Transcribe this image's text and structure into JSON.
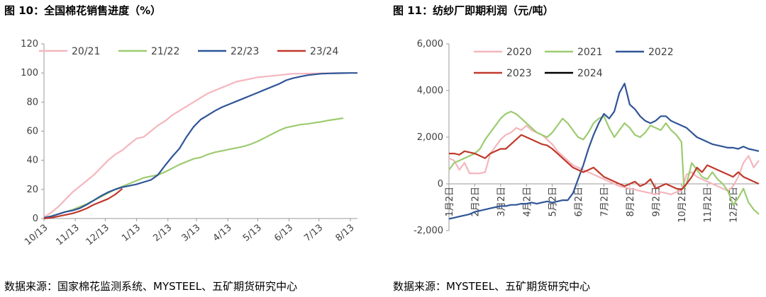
{
  "charts": [
    {
      "title": "图 10：全国棉花销售进度（%）",
      "source": "数据来源：国家棉花监测系统、MYSTEEL、五矿期货研究中心"
    },
    {
      "title": "图 11：纺纱厂即期利润（元/吨）",
      "source": "数据来源：MYSTEEL、五矿期货研究中心"
    }
  ],
  "chart_data": [
    {
      "type": "line",
      "title": "图 10：全国棉花销售进度（%）",
      "xlabel": "",
      "ylabel": "",
      "x_range": [
        0,
        44
      ],
      "x_ticks": [
        {
          "x": 0,
          "label": "10/13"
        },
        {
          "x": 4.4,
          "label": "11/13"
        },
        {
          "x": 8.6,
          "label": "12/13"
        },
        {
          "x": 13,
          "label": "1/13"
        },
        {
          "x": 17.4,
          "label": "2/13"
        },
        {
          "x": 21.4,
          "label": "3/13"
        },
        {
          "x": 25.8,
          "label": "4/13"
        },
        {
          "x": 30,
          "label": "5/13"
        },
        {
          "x": 34.4,
          "label": "6/13"
        },
        {
          "x": 38.6,
          "label": "7/13"
        },
        {
          "x": 43,
          "label": "8/13"
        }
      ],
      "ylim": [
        0,
        120
      ],
      "y_ticks": [
        0,
        20,
        40,
        60,
        80,
        100,
        120
      ],
      "grid": false,
      "legend": "top",
      "series": [
        {
          "name": "20/21",
          "color": "#f4b6bd",
          "x": [
            0,
            1,
            2,
            3,
            4,
            5,
            6,
            7,
            8,
            9,
            10,
            11,
            12,
            13,
            14,
            15,
            16,
            17,
            18,
            19,
            20,
            21,
            22,
            23,
            24,
            25,
            26,
            27,
            28,
            29,
            30,
            31,
            32,
            33,
            34,
            35,
            36,
            37,
            38,
            39,
            40,
            41,
            42
          ],
          "y": [
            1,
            4,
            8,
            13,
            18,
            22,
            26,
            30,
            35,
            40,
            44,
            47,
            51,
            55,
            56,
            60,
            64,
            67,
            71,
            74,
            77,
            80,
            83,
            86,
            88,
            90,
            92,
            94,
            95,
            96,
            97,
            97.5,
            98,
            98.5,
            99,
            99.5,
            99.5,
            99.6,
            99.7,
            99.8,
            99.8,
            99.9,
            100
          ]
        },
        {
          "name": "21/22",
          "color": "#9dcb70",
          "x": [
            0,
            1,
            2,
            3,
            4,
            5,
            6,
            7,
            8,
            9,
            10,
            11,
            12,
            13,
            14,
            15,
            16,
            17,
            18,
            19,
            20,
            21,
            22,
            23,
            24,
            25,
            26,
            27,
            28,
            29,
            30,
            31,
            32,
            33,
            34,
            35,
            36,
            37,
            38,
            39,
            40,
            41,
            42
          ],
          "y": [
            0.5,
            1.5,
            3,
            4.5,
            6,
            8,
            10,
            12.5,
            15,
            17.5,
            20,
            22,
            24,
            26,
            28,
            29,
            30,
            32,
            34.5,
            37,
            39,
            41,
            42,
            44,
            45.5,
            46.5,
            47.5,
            48.5,
            49.5,
            51,
            53,
            55.5,
            58,
            60.5,
            62.5,
            63.5,
            64.5,
            65,
            65.8,
            66.5,
            67.5,
            68.2,
            69
          ]
        },
        {
          "name": "22/23",
          "color": "#2f5597",
          "x": [
            0,
            1,
            2,
            3,
            4,
            5,
            6,
            7,
            8,
            9,
            10,
            11,
            12,
            13,
            14,
            15,
            16,
            17,
            18,
            19,
            20,
            21,
            22,
            23,
            24,
            25,
            26,
            27,
            28,
            29,
            30,
            31,
            32,
            33,
            34,
            35,
            36,
            37,
            38,
            39,
            40,
            41,
            42,
            43,
            44
          ],
          "y": [
            0.5,
            1.5,
            3,
            4.5,
            5.5,
            7,
            9.5,
            12.5,
            15.5,
            18,
            20,
            21.5,
            22.5,
            23.5,
            25,
            26.5,
            30,
            36.5,
            42.5,
            48,
            56,
            63,
            68,
            71,
            74,
            76.5,
            78.5,
            80.5,
            82.5,
            84.5,
            86.5,
            88.5,
            90.5,
            92.5,
            95,
            96.5,
            97.5,
            98.5,
            99,
            99.5,
            99.7,
            99.8,
            99.9,
            100,
            100
          ]
        },
        {
          "name": "23/24",
          "color": "#c0392b",
          "x": [
            0,
            1,
            2,
            3,
            4,
            5,
            6,
            7,
            8,
            9,
            10,
            11
          ],
          "y": [
            0,
            0.5,
            1.5,
            2.5,
            3.5,
            5,
            7,
            9.5,
            11.5,
            13.5,
            16.5,
            20.5
          ]
        }
      ]
    },
    {
      "type": "line",
      "title": "图 11：纺纱厂即期利润（元/吨）",
      "xlabel": "",
      "ylabel": "",
      "x_range": [
        1,
        13
      ],
      "x_ticks": [
        {
          "x": 1,
          "label": "1月2日"
        },
        {
          "x": 2,
          "label": "2月2日"
        },
        {
          "x": 3,
          "label": "3月2日"
        },
        {
          "x": 4,
          "label": "4月2日"
        },
        {
          "x": 5,
          "label": "5月2日"
        },
        {
          "x": 6,
          "label": "6月2日"
        },
        {
          "x": 7,
          "label": "7月2日"
        },
        {
          "x": 8,
          "label": "8月2日"
        },
        {
          "x": 9,
          "label": "9月2日"
        },
        {
          "x": 10,
          "label": "10月2日"
        },
        {
          "x": 11,
          "label": "11月2日"
        },
        {
          "x": 12,
          "label": "12月2日"
        }
      ],
      "ylim": [
        -2000,
        6000
      ],
      "y_ticks": [
        -2000,
        0,
        2000,
        4000,
        6000
      ],
      "y_tick_labels": [
        "-2,000",
        "0",
        "2,000",
        "4,000",
        "6,000"
      ],
      "grid": false,
      "legend": "top",
      "series": [
        {
          "name": "2020",
          "color": "#f4b6bd",
          "x": [
            1,
            1.2,
            1.4,
            1.6,
            1.8,
            2,
            2.2,
            2.4,
            2.6,
            2.8,
            3,
            3.2,
            3.4,
            3.6,
            3.8,
            4,
            4.2,
            4.4,
            4.6,
            4.8,
            5,
            5.2,
            5.4,
            5.6,
            5.8,
            6,
            6.2,
            6.4,
            6.6,
            6.8,
            7,
            7.2,
            7.4,
            7.6,
            7.8,
            8,
            8.2,
            8.4,
            8.6,
            8.8,
            9,
            9.2,
            9.4,
            9.6,
            9.8,
            10,
            10.2,
            10.4,
            10.6,
            10.8,
            11,
            11.2,
            11.4,
            11.6,
            11.8,
            12,
            12.2,
            12.4,
            12.6,
            12.8,
            13
          ],
          "y": [
            1100,
            1000,
            600,
            900,
            450,
            450,
            450,
            500,
            1300,
            1600,
            1900,
            2100,
            2200,
            2400,
            2300,
            2500,
            2300,
            2200,
            2100,
            1900,
            1700,
            1400,
            1200,
            1000,
            800,
            700,
            600,
            500,
            400,
            300,
            200,
            100,
            0,
            -100,
            -150,
            -200,
            -250,
            -300,
            -350,
            -400,
            -450,
            -350,
            -400,
            -450,
            -350,
            -300,
            400,
            500,
            300,
            200,
            100,
            0,
            -100,
            -200,
            -300,
            -100,
            300,
            900,
            1200,
            700,
            1000
          ]
        },
        {
          "name": "2021",
          "color": "#9dcb70",
          "x": [
            1,
            1.2,
            1.4,
            1.6,
            1.8,
            2,
            2.2,
            2.4,
            2.6,
            2.8,
            3,
            3.2,
            3.4,
            3.6,
            3.8,
            4,
            4.2,
            4.4,
            4.6,
            4.8,
            5,
            5.2,
            5.4,
            5.6,
            5.8,
            6,
            6.2,
            6.4,
            6.6,
            6.8,
            7,
            7.2,
            7.4,
            7.6,
            7.8,
            8,
            8.2,
            8.4,
            8.6,
            8.8,
            9,
            9.2,
            9.4,
            9.6,
            9.8,
            10,
            10.1,
            10.2,
            10.4,
            10.6,
            10.8,
            11,
            11.2,
            11.4,
            11.6,
            11.8,
            12,
            12.2,
            12.4,
            12.6,
            12.8,
            13
          ],
          "y": [
            600,
            900,
            1000,
            1100,
            1200,
            1300,
            1500,
            1900,
            2200,
            2500,
            2800,
            3000,
            3100,
            3000,
            2800,
            2600,
            2400,
            2200,
            2100,
            2000,
            2200,
            2500,
            2800,
            2600,
            2300,
            2000,
            1900,
            2200,
            2600,
            2800,
            2900,
            2400,
            2000,
            2300,
            2600,
            2400,
            2100,
            2000,
            2200,
            2500,
            2400,
            2300,
            2600,
            2300,
            2100,
            1800,
            -200,
            0,
            900,
            600,
            300,
            200,
            500,
            200,
            0,
            -300,
            -900,
            -600,
            -200,
            -800,
            -1100,
            -1300
          ]
        },
        {
          "name": "2022",
          "color": "#2f5597",
          "x": [
            1,
            1.2,
            1.4,
            1.6,
            1.8,
            2,
            2.2,
            2.4,
            2.6,
            2.8,
            3,
            3.2,
            3.4,
            3.6,
            3.8,
            4,
            4.2,
            4.4,
            4.6,
            4.8,
            5,
            5.2,
            5.4,
            5.6,
            5.8,
            6,
            6.2,
            6.4,
            6.6,
            6.8,
            7,
            7.2,
            7.4,
            7.6,
            7.8,
            8,
            8.2,
            8.4,
            8.6,
            8.8,
            9,
            9.2,
            9.4,
            9.6,
            9.8,
            10,
            10.2,
            10.4,
            10.6,
            10.8,
            11,
            11.2,
            11.4,
            11.6,
            11.8,
            12,
            12.2,
            12.4,
            12.6,
            12.8,
            13
          ],
          "y": [
            -1500,
            -1450,
            -1400,
            -1350,
            -1300,
            -1200,
            -1150,
            -1100,
            -1050,
            -1000,
            -950,
            -950,
            -900,
            -900,
            -850,
            -850,
            -800,
            -850,
            -800,
            -750,
            -800,
            -750,
            -700,
            -700,
            -400,
            200,
            800,
            1500,
            2100,
            2600,
            3000,
            2800,
            3100,
            3900,
            4300,
            3400,
            3200,
            2900,
            2700,
            2600,
            2700,
            2900,
            2900,
            2700,
            2600,
            2500,
            2400,
            2200,
            2000,
            1900,
            1800,
            1700,
            1650,
            1600,
            1550,
            1550,
            1500,
            1600,
            1500,
            1450,
            1400
          ]
        },
        {
          "name": "2023",
          "color": "#c0392b",
          "x": [
            1,
            1.2,
            1.4,
            1.6,
            1.8,
            2,
            2.2,
            2.4,
            2.6,
            2.8,
            3,
            3.2,
            3.4,
            3.6,
            3.8,
            4,
            4.2,
            4.4,
            4.6,
            4.8,
            5,
            5.2,
            5.4,
            5.6,
            5.8,
            6,
            6.2,
            6.4,
            6.6,
            6.8,
            7,
            7.2,
            7.4,
            7.6,
            7.8,
            8,
            8.2,
            8.4,
            8.6,
            8.8,
            9,
            9.2,
            9.4,
            9.6,
            9.8,
            10,
            10.2,
            10.4,
            10.6,
            10.8,
            11,
            11.2,
            11.4,
            11.6,
            11.8,
            12,
            12.2,
            12.4,
            12.6,
            12.8,
            13
          ],
          "y": [
            1300,
            1300,
            1250,
            1400,
            1350,
            1300,
            1200,
            1100,
            1300,
            1400,
            1500,
            1500,
            1700,
            1900,
            2100,
            2000,
            1900,
            1800,
            1700,
            1650,
            1500,
            1300,
            1100,
            900,
            700,
            600,
            500,
            600,
            700,
            500,
            300,
            200,
            100,
            0,
            -100,
            0,
            100,
            -100,
            0,
            200,
            -200,
            -100,
            0,
            -100,
            -200,
            -250,
            0,
            300,
            700,
            500,
            800,
            700,
            600,
            500,
            400,
            300,
            500,
            300,
            200,
            100,
            0
          ]
        },
        {
          "name": "2024",
          "color": "#000000",
          "x": [],
          "y": []
        }
      ]
    }
  ]
}
